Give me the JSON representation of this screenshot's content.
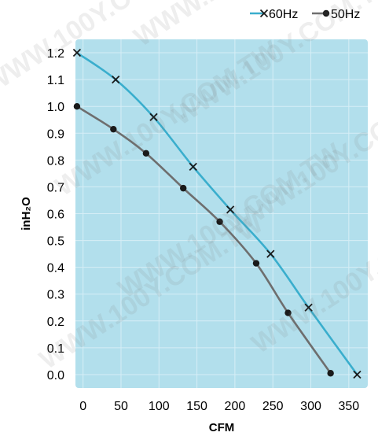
{
  "colors": {
    "plot_background": "#b2dfec",
    "grid": "#d6eef6",
    "series_60hz": "#3aaecd",
    "series_50hz": "#6e6e6e",
    "marker": "#1a1a1a",
    "text": "#000000",
    "watermark": "#7a7a7a"
  },
  "watermark_text": "WWW.100Y.COM.TW",
  "chart_data": {
    "type": "line",
    "xlabel": "CFM",
    "ylabel": "inH₂O",
    "xlim": [
      -10,
      375
    ],
    "ylim": [
      -0.05,
      1.25
    ],
    "x_ticks": [
      0,
      50,
      100,
      150,
      200,
      250,
      300,
      350
    ],
    "x_tick_labels": [
      "0",
      "50",
      "100",
      "150",
      "200",
      "250",
      "300",
      "350"
    ],
    "y_ticks": [
      0.0,
      0.1,
      0.2,
      0.3,
      0.4,
      0.5,
      0.6,
      0.7,
      0.8,
      0.9,
      1.0,
      1.1,
      1.2
    ],
    "y_tick_labels": [
      "0.0",
      "0.1",
      "0.2",
      "0.3",
      "0.4",
      "0.5",
      "0.6",
      "0.7",
      "0.8",
      "0.9",
      "1.0",
      "1.1",
      "1.2"
    ],
    "grid": true,
    "legend_position": "top-right",
    "series": [
      {
        "name": "60Hz",
        "marker": "x",
        "color_key": "series_60hz",
        "x": [
          -8,
          43,
          93,
          145,
          194,
          247,
          297,
          361
        ],
        "y": [
          1.2,
          1.1,
          0.96,
          0.775,
          0.615,
          0.45,
          0.25,
          0.0
        ]
      },
      {
        "name": "50Hz",
        "marker": "dot",
        "color_key": "series_50hz",
        "x": [
          -8,
          40,
          83,
          132,
          180,
          228,
          270,
          326
        ],
        "y": [
          1.0,
          0.915,
          0.825,
          0.695,
          0.57,
          0.415,
          0.23,
          0.005
        ]
      }
    ]
  }
}
